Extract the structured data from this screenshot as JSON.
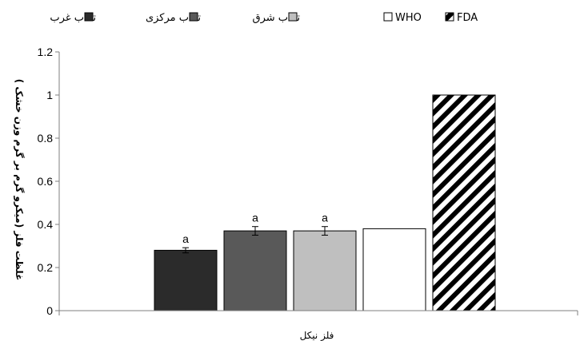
{
  "chart_data": {
    "type": "bar",
    "categories": [
      "فلز نیکل"
    ],
    "series": [
      {
        "name": "تالاب غرب",
        "values": [
          0.28
        ],
        "error": [
          0.012
        ],
        "label": "a",
        "color": "#2b2b2b",
        "pattern": "solid"
      },
      {
        "name": "تالاب مرکزی",
        "values": [
          0.37
        ],
        "error": [
          0.02
        ],
        "label": "a",
        "color": "#595959",
        "pattern": "solid"
      },
      {
        "name": "تالاب شرق",
        "values": [
          0.37
        ],
        "error": [
          0.02
        ],
        "label": "a",
        "color": "#bfbfbf",
        "pattern": "solid"
      },
      {
        "name": "WHO",
        "values": [
          0.38
        ],
        "error": null,
        "label": "",
        "color": "#ffffff",
        "pattern": "solid"
      },
      {
        "name": "FDA",
        "values": [
          1.0
        ],
        "error": null,
        "label": "",
        "color": "#ffffff",
        "pattern": "diagonal-stripes"
      }
    ],
    "ylabel": "غلظت فلز (میکرو گرم بر گرم وزن خشک )",
    "xlabel": "",
    "ylim": [
      0,
      1.2
    ],
    "yticks": [
      "0",
      "0.2",
      "0.4",
      "0.6",
      "0.8",
      "1",
      "1.2"
    ],
    "grid": false,
    "legend_position": "top"
  }
}
